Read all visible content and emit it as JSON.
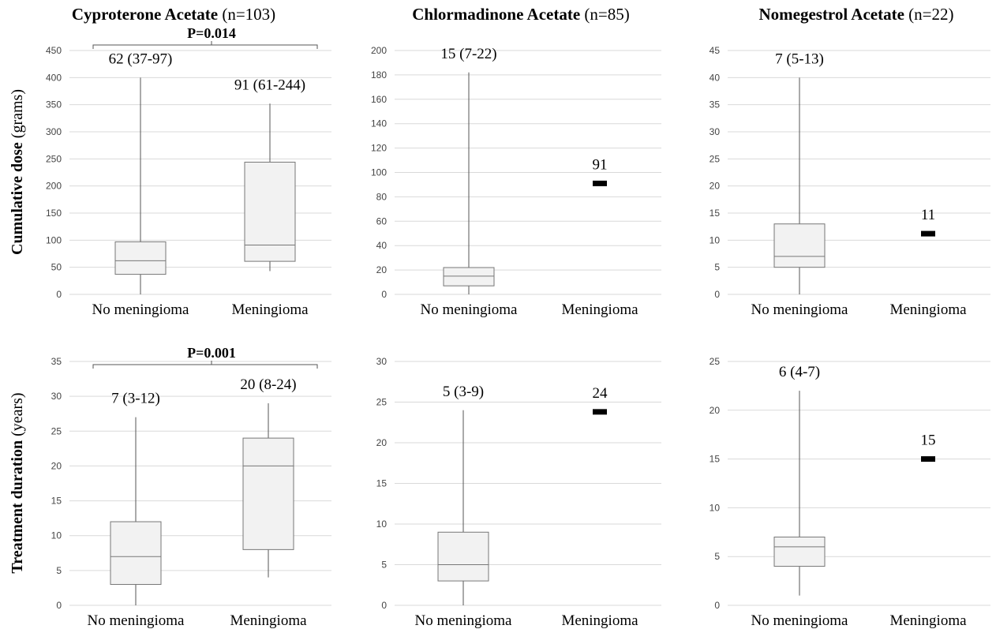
{
  "y_labels": [
    {
      "bold": "Cumulative dose",
      "normal": " (grams)"
    },
    {
      "bold": "Treatment duration",
      "normal": " (years)"
    }
  ],
  "chart_data": [
    {
      "type": "box",
      "title_bold": "Cyproterone Acetate",
      "title_normal": " (n=103)",
      "categories": [
        "No meningioma",
        "Meningioma"
      ],
      "ylim": [
        0,
        450
      ],
      "yticks": [
        0,
        50,
        100,
        150,
        200,
        250,
        300,
        350,
        400,
        450
      ],
      "boxes": [
        {
          "min": 0,
          "q1": 37,
          "median": 62,
          "q3": 97,
          "max": 400,
          "label": "62 (37-97)"
        },
        {
          "min": 43,
          "q1": 61,
          "median": 91,
          "q3": 244,
          "max": 352,
          "label": "91 (61-244)"
        }
      ],
      "pvalue": "P=0.014"
    },
    {
      "type": "box",
      "title_bold": "Chlormadinone Acetate",
      "title_normal": " (n=85)",
      "categories": [
        "No meningioma",
        "Meningioma"
      ],
      "ylim": [
        0,
        200
      ],
      "yticks": [
        0,
        20,
        40,
        60,
        80,
        100,
        120,
        140,
        160,
        180,
        200
      ],
      "boxes": [
        {
          "min": 0,
          "q1": 7,
          "median": 15,
          "q3": 22,
          "max": 182,
          "label": "15 (7-22)"
        },
        {
          "single": 91,
          "label": "91"
        }
      ]
    },
    {
      "type": "box",
      "title_bold": "Nomegestrol Acetate",
      "title_normal": " (n=22)",
      "categories": [
        "No meningioma",
        "Meningioma"
      ],
      "ylim": [
        0,
        45
      ],
      "yticks": [
        0,
        5,
        10,
        15,
        20,
        25,
        30,
        35,
        40,
        45
      ],
      "boxes": [
        {
          "min": 0,
          "q1": 5,
          "median": 7,
          "q3": 13,
          "max": 40,
          "label": "7 (5-13)"
        },
        {
          "single": 11.2,
          "label": "11"
        }
      ]
    },
    {
      "type": "box",
      "title_bold": "",
      "title_normal": "",
      "categories": [
        "No meningioma",
        "Meningioma"
      ],
      "ylim": [
        0,
        35
      ],
      "yticks": [
        0,
        5,
        10,
        15,
        20,
        25,
        30,
        35
      ],
      "boxes": [
        {
          "min": 0,
          "q1": 3,
          "median": 7,
          "q3": 12,
          "max": 27,
          "label": "7 (3-12)"
        },
        {
          "min": 4,
          "q1": 8,
          "median": 20,
          "q3": 24,
          "max": 29,
          "label": "20 (8-24)"
        }
      ],
      "pvalue": "P=0.001"
    },
    {
      "type": "box",
      "title_bold": "",
      "title_normal": "",
      "categories": [
        "No meningioma",
        "Meningioma"
      ],
      "ylim": [
        0,
        30
      ],
      "yticks": [
        0,
        5,
        10,
        15,
        20,
        25,
        30
      ],
      "boxes": [
        {
          "min": 0,
          "q1": 3,
          "median": 5,
          "q3": 9,
          "max": 24,
          "label": "5 (3-9)"
        },
        {
          "single": 23.8,
          "label": "24"
        }
      ]
    },
    {
      "type": "box",
      "title_bold": "",
      "title_normal": "",
      "categories": [
        "No meningioma",
        "Meningioma"
      ],
      "ylim": [
        0,
        25
      ],
      "yticks": [
        0,
        5,
        10,
        15,
        20,
        25
      ],
      "boxes": [
        {
          "min": 1,
          "q1": 4,
          "median": 6,
          "q3": 7,
          "max": 22,
          "label": "6 (4-7)"
        },
        {
          "single": 15,
          "label": "15"
        }
      ]
    }
  ]
}
